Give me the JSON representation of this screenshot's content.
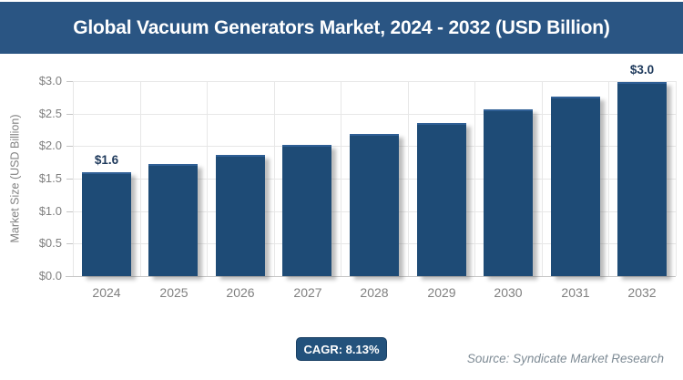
{
  "title": "Global Vacuum Generators Market, 2024 - 2032 (USD Billion)",
  "colors": {
    "header_bg": "#2A5583",
    "bar_fill": "#1E4B76",
    "bar_top_edge": "#2F5F95",
    "badge_bg": "#23527C",
    "badge_border": "#1A4064",
    "grid": "#E7E7E7",
    "axis": "#C5C5C5",
    "tick_text": "#808080",
    "data_label": "#1F3A5C",
    "source_text": "#7E8B95"
  },
  "chart_data": {
    "type": "bar",
    "title": "Global Vacuum Generators Market, 2024 - 2032 (USD Billion)",
    "categories": [
      "2024",
      "2025",
      "2026",
      "2027",
      "2028",
      "2029",
      "2030",
      "2031",
      "2032"
    ],
    "values": [
      1.6,
      1.73,
      1.87,
      2.02,
      2.19,
      2.36,
      2.56,
      2.76,
      2.99
    ],
    "data_labels": [
      "$1.6",
      "",
      "",
      "",
      "",
      "",
      "",
      "",
      "$3.0"
    ],
    "xlabel": "",
    "ylabel": "Market Size (USD Billion)",
    "ylim": [
      0,
      3.0
    ],
    "yticks": [
      "$0.0",
      "$0.5",
      "$1.0",
      "$1.5",
      "$2.0",
      "$2.5",
      "$3.0"
    ],
    "grid": true,
    "legend": false
  },
  "footer": {
    "cagr_label": "CAGR: 8.13%",
    "source": "Source: Syndicate Market Research"
  }
}
